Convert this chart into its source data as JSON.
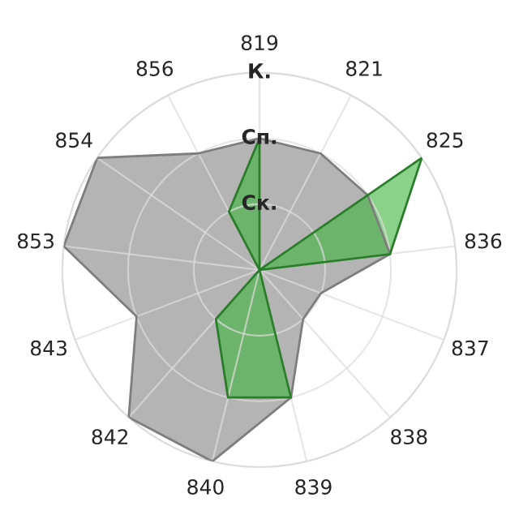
{
  "chart_data": {
    "type": "radar",
    "categories": [
      "819",
      "821",
      "825",
      "836",
      "837",
      "838",
      "839",
      "840",
      "842",
      "843",
      "853",
      "854",
      "856"
    ],
    "series": [
      {
        "color": "#b4b4b4",
        "values": [
          2,
          2,
          2,
          2,
          1,
          1,
          2,
          3,
          3,
          2,
          3,
          3,
          2
        ]
      },
      {
        "color": "#3cb43c",
        "values": [
          2,
          0,
          3,
          2,
          0,
          0,
          2,
          2,
          1,
          0,
          0,
          0,
          1
        ]
      }
    ],
    "ylim": [
      0,
      3
    ],
    "yticks": [
      {
        "value": 1,
        "label": "Ск."
      },
      {
        "value": 2,
        "label": "Сп."
      },
      {
        "value": 3,
        "label": "К."
      }
    ],
    "grid": true,
    "legend": false
  }
}
